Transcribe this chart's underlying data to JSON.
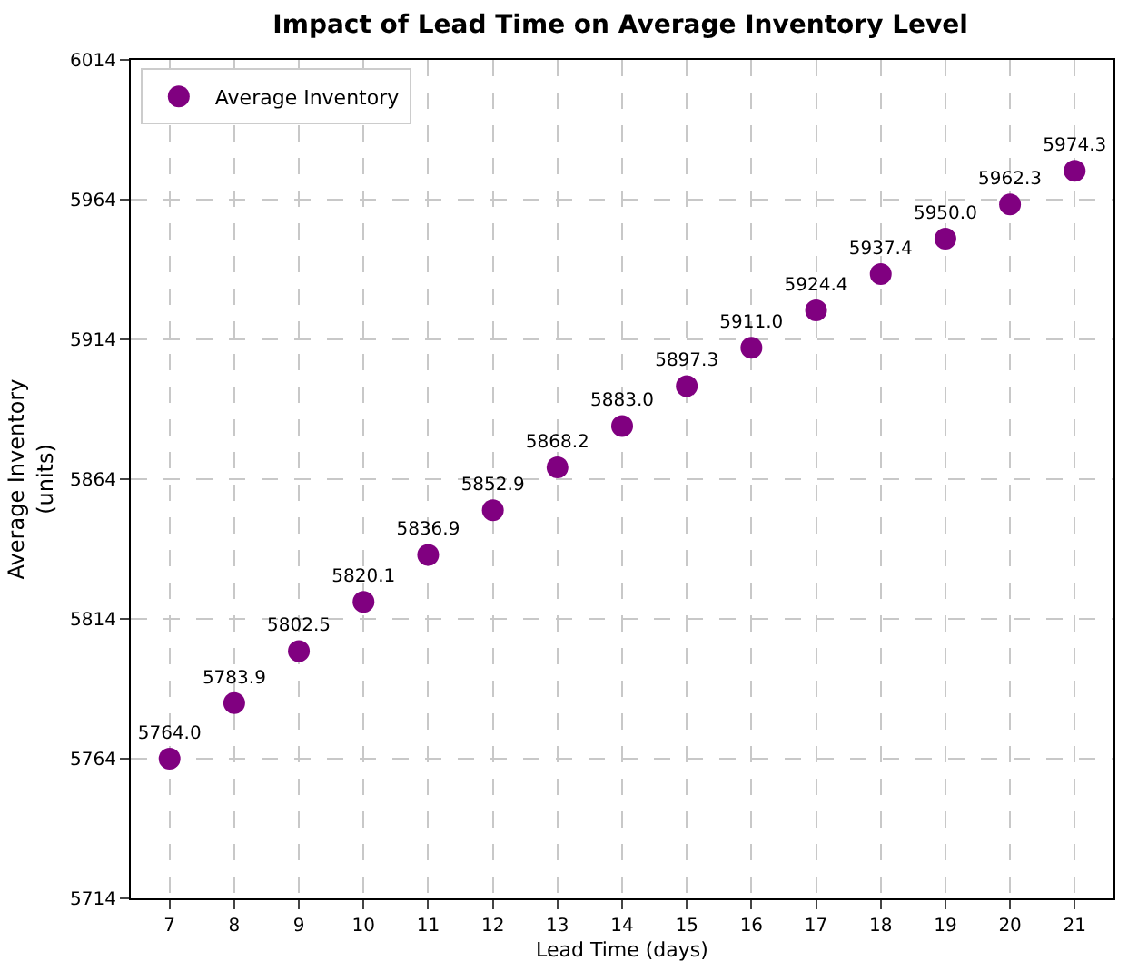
{
  "chart_data": {
    "type": "scatter",
    "title": "Impact of Lead Time on Average Inventory Level",
    "xlabel": "Lead Time (days)",
    "ylabel": "Average Inventory\n(units)",
    "x": [
      7,
      8,
      9,
      10,
      11,
      12,
      13,
      14,
      15,
      16,
      17,
      18,
      19,
      20,
      21
    ],
    "series": [
      {
        "name": "Average Inventory",
        "color": "#800080",
        "values": [
          5764.0,
          5783.9,
          5802.5,
          5820.1,
          5836.9,
          5852.9,
          5868.2,
          5883.0,
          5897.3,
          5911.0,
          5924.4,
          5937.4,
          5950.0,
          5962.3,
          5974.3
        ],
        "value_labels": [
          "5764.0",
          "5783.9",
          "5802.5",
          "5820.1",
          "5836.9",
          "5852.9",
          "5868.2",
          "5883.0",
          "5897.3",
          "5911.0",
          "5924.4",
          "5937.4",
          "5950.0",
          "5962.3",
          "5974.3"
        ]
      }
    ],
    "xlim": [
      6.4,
      21.6
    ],
    "xticks": [
      7,
      8,
      9,
      10,
      11,
      12,
      13,
      14,
      15,
      16,
      17,
      18,
      19,
      20,
      21
    ],
    "ylim": [
      5714,
      6014
    ],
    "yticks": [
      5714,
      5764,
      5814,
      5864,
      5914,
      5964,
      6014
    ],
    "grid": true,
    "legend": "top left",
    "marker": "circle"
  }
}
